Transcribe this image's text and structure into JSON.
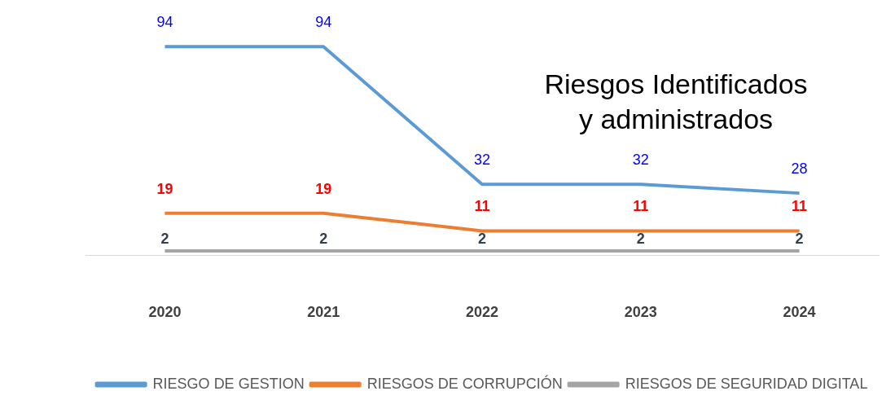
{
  "chart_data": {
    "type": "line",
    "title": "Riesgos Identificados\ny administrados",
    "categories": [
      "2020",
      "2021",
      "2022",
      "2023",
      "2024"
    ],
    "series": [
      {
        "name": "RIESGO DE GESTION",
        "color": "#5b9bd5",
        "values": [
          94,
          94,
          32,
          32,
          28
        ]
      },
      {
        "name": "RIESGOS DE CORRUPCIÓN",
        "color": "#ed7d31",
        "values": [
          19,
          19,
          11,
          11,
          11
        ]
      },
      {
        "name": "RIESGOS DE SEGURIDAD DIGITAL",
        "color": "#a5a5a5",
        "values": [
          2,
          2,
          2,
          2,
          2
        ]
      }
    ],
    "data_labels": true,
    "legend": "bottom",
    "grid": false,
    "marker": "none",
    "line_style": "solid"
  }
}
